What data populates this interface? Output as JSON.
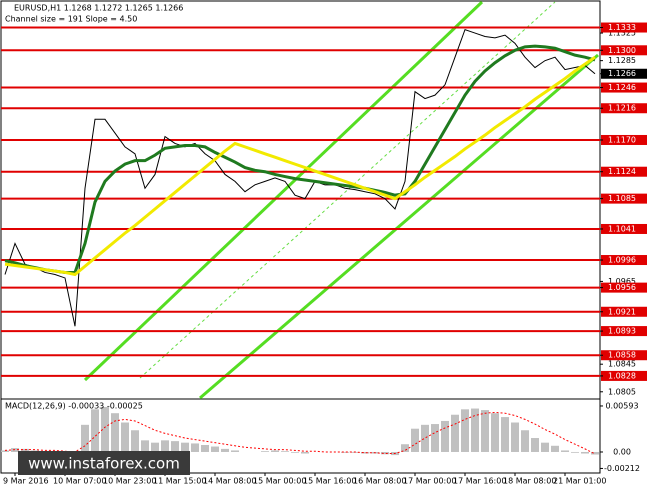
{
  "chart_data": [
    {
      "type": "line",
      "title": "EURUSD,H1  1.1268 1.1272 1.1265 1.1266",
      "subtitle": "Channel size = 191 Slope = 4.50",
      "categories": [
        null,
        "9 Mar 2016",
        null,
        null,
        null,
        null,
        "10 Mar 07:00",
        null,
        null,
        null,
        null,
        "10 Mar 23:00",
        null,
        null,
        null,
        null,
        "11 Mar 15:00",
        null,
        null,
        null,
        null,
        "14 Mar 08:00",
        null,
        null,
        null,
        null,
        "15 Mar 00:00",
        null,
        null,
        null,
        null,
        "15 Mar 16:00",
        null,
        null,
        null,
        null,
        "16 Mar 08:00",
        null,
        null,
        null,
        null,
        "17 Mar 00:00",
        null,
        null,
        null,
        null,
        "17 Mar 16:00",
        null,
        null,
        null,
        null,
        "18 Mar 08:00",
        null,
        null,
        null,
        null,
        "21 Mar 01:00",
        null,
        null,
        null
      ],
      "series": [
        {
          "color": "#000000",
          "values": [
            1.0975,
            1.102,
            1.099,
            1.0985,
            1.0978,
            1.0975,
            1.097,
            1.09,
            1.11,
            1.12,
            1.12,
            1.118,
            1.116,
            1.115,
            1.11,
            1.112,
            1.1175,
            1.1165,
            1.116,
            1.1165,
            1.115,
            1.114,
            1.112,
            1.111,
            1.1095,
            1.1105,
            1.111,
            1.1115,
            1.111,
            1.109,
            1.1085,
            1.111,
            1.1105,
            1.1105,
            1.11,
            1.1098,
            1.1095,
            1.1092,
            1.1085,
            1.107,
            1.111,
            1.124,
            1.123,
            1.1235,
            1.125,
            1.129,
            1.133,
            1.1325,
            1.132,
            1.1318,
            1.1322,
            1.131,
            1.129,
            1.1275,
            1.1285,
            1.129,
            1.1272,
            1.1275,
            1.1278,
            1.1266
          ]
        },
        {
          "color": "#1f7a1f",
          "values": [
            1.0995,
            1.0992,
            1.0988,
            1.0985,
            1.0982,
            1.098,
            1.0978,
            1.0978,
            1.102,
            1.108,
            1.111,
            1.1125,
            1.1135,
            1.114,
            1.114,
            1.1148,
            1.1158,
            1.116,
            1.1162,
            1.1162,
            1.116,
            1.1152,
            1.1145,
            1.1138,
            1.113,
            1.1126,
            1.1124,
            1.112,
            1.1117,
            1.1114,
            1.1112,
            1.111,
            1.1108,
            1.1106,
            1.1104,
            1.1102,
            1.11,
            1.1097,
            1.1094,
            1.109,
            1.1092,
            1.111,
            1.1135,
            1.116,
            1.1185,
            1.121,
            1.1235,
            1.1255,
            1.127,
            1.1282,
            1.1292,
            1.13,
            1.1305,
            1.1306,
            1.1305,
            1.1303,
            1.1298,
            1.1293,
            1.129,
            1.1286
          ]
        },
        {
          "color": "#f2ea00",
          "values": [
            1.099,
            1.0988,
            1.0986,
            1.0984,
            1.0982,
            1.098,
            1.0978,
            1.0975,
            1.0987,
            1.0999,
            1.1011,
            1.1023,
            1.1035,
            1.1046,
            1.1058,
            1.107,
            1.1082,
            1.1094,
            1.1106,
            1.1118,
            1.113,
            1.1142,
            1.1154,
            1.1165,
            1.116,
            1.1155,
            1.115,
            1.1145,
            1.114,
            1.1135,
            1.113,
            1.1125,
            1.112,
            1.1115,
            1.111,
            1.1105,
            1.11,
            1.1095,
            1.109,
            1.1085,
            1.1095,
            1.1105,
            1.1116,
            1.1126,
            1.1136,
            1.1146,
            1.1157,
            1.1167,
            1.1177,
            1.1188,
            1.1198,
            1.1208,
            1.1218,
            1.1229,
            1.1239,
            1.1249,
            1.1259,
            1.127,
            1.128,
            1.129
          ]
        }
      ],
      "ylim": [
        1.0796,
        1.137
      ],
      "yticks": [
        1.1325,
        1.1285,
        1.0965,
        1.0845,
        1.0805
      ],
      "levels": [
        1.1333,
        {
          "value": 1.13,
          "label": "1.1300"
        },
        1.1246,
        1.1216,
        {
          "value": 1.117,
          "label": "1.1170"
        },
        1.1124,
        1.1085,
        1.1041,
        1.0996,
        1.0956,
        1.0921,
        1.0893,
        1.0858,
        1.0828
      ],
      "level_color": "#e00000",
      "last_price": 1.1266
    },
    {
      "type": "bar",
      "title": "MACD(12,26,9) -0.00033 -0.00025",
      "series": [
        {
          "color": "#c0c0c0",
          "values": [
            0.0002,
            0.0005,
            0.0004,
            0.0002,
            0.0001,
            0.0,
            -0.0001,
            -0.0005,
            0.0035,
            0.0055,
            0.0058,
            0.005,
            0.0038,
            0.0028,
            0.0015,
            0.0012,
            0.0015,
            0.0014,
            0.0012,
            0.0011,
            0.0009,
            0.0007,
            0.0004,
            0.0002,
            0.0,
            0.0,
            0.0001,
            0.0002,
            0.0001,
            -0.0001,
            -0.0002,
            0.0,
            0.0,
            0.0,
            -0.0001,
            -0.0001,
            -0.0002,
            -0.0002,
            -0.0003,
            -0.0004,
            0.001,
            0.003,
            0.0035,
            0.0036,
            0.004,
            0.0048,
            0.0055,
            0.0056,
            0.0054,
            0.005,
            0.0045,
            0.0038,
            0.0028,
            0.0018,
            0.0012,
            0.0008,
            0.0002,
            -0.0001,
            -0.0002,
            -0.00033
          ]
        },
        {
          "color": "#ff0000",
          "values": [
            0.0002,
            0.0003,
            0.0003,
            0.0003,
            0.0002,
            0.0002,
            0.0001,
            0.0,
            0.0008,
            0.002,
            0.0032,
            0.004,
            0.0042,
            0.004,
            0.0034,
            0.0028,
            0.0024,
            0.0021,
            0.0018,
            0.0016,
            0.0014,
            0.0012,
            0.001,
            0.0008,
            0.0006,
            0.0005,
            0.0004,
            0.0003,
            0.0003,
            0.0002,
            0.0001,
            0.0001,
            0.0,
            0.0,
            0.0,
            0.0,
            -0.0001,
            -0.0001,
            -0.0002,
            -0.0002,
            0.0002,
            0.001,
            0.0018,
            0.0025,
            0.0031,
            0.0036,
            0.0042,
            0.0047,
            0.005,
            0.0051,
            0.005,
            0.0047,
            0.0042,
            0.0036,
            0.0029,
            0.0023,
            0.0016,
            0.001,
            0.0004,
            -0.00025
          ]
        }
      ],
      "ylim": [
        -0.00258,
        0.0067
      ],
      "yticks": [
        0.00593,
        {
          "value": 0,
          "label": "0.00"
        },
        -0.00212
      ]
    }
  ],
  "watermark": "www.instaforex.com"
}
